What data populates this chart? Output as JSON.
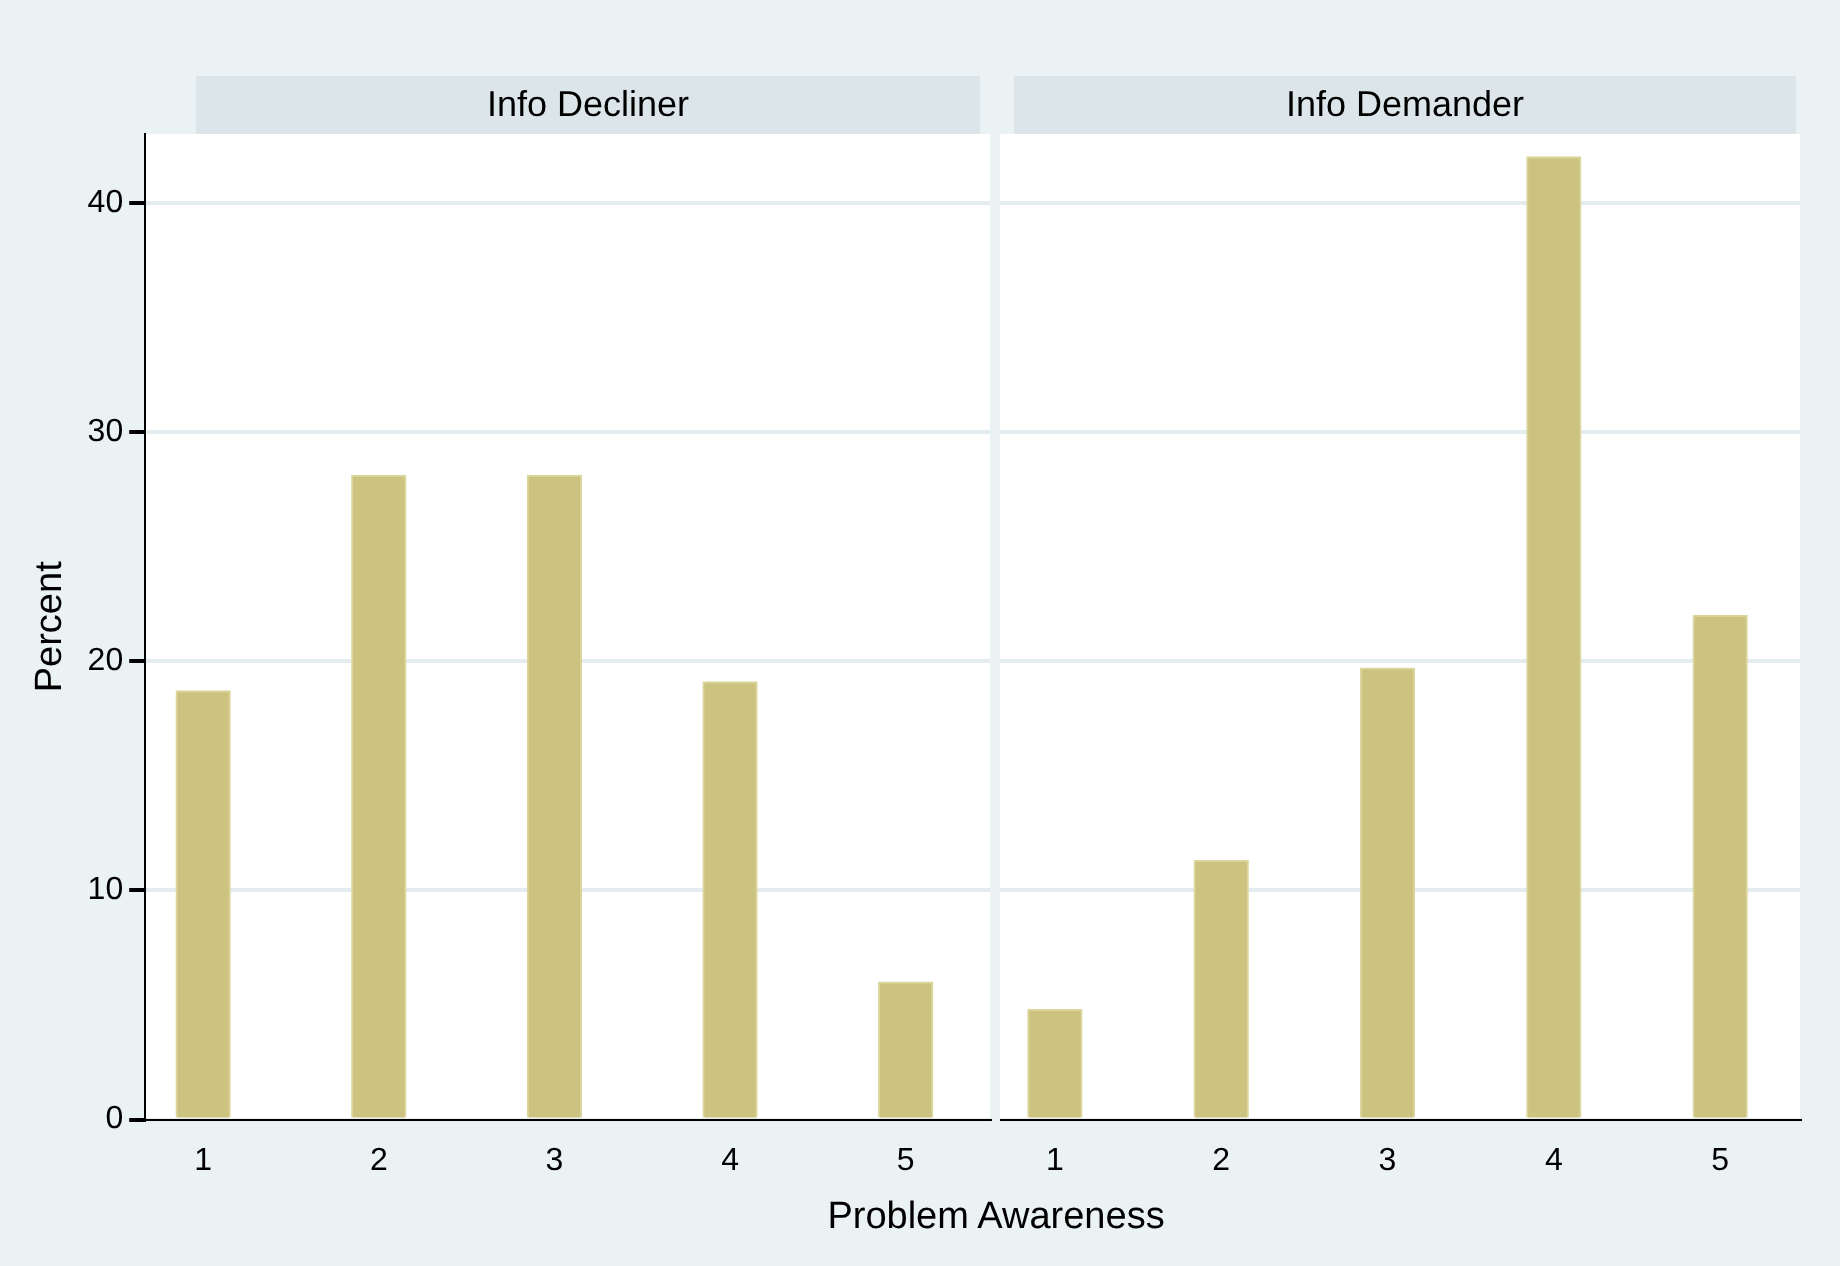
{
  "chart_data": [
    {
      "type": "bar",
      "title": "Info Decliner",
      "ylabel": "Percent",
      "xlabel": "Problem Awareness",
      "x": [
        1,
        2,
        3,
        4,
        5
      ],
      "values": [
        18.7,
        28.1,
        28.1,
        19.1,
        6.0
      ],
      "color": "#ccc381",
      "xlim": [
        0.67,
        5.48
      ],
      "xticks": [
        1,
        2,
        3,
        4,
        5
      ],
      "ylim": [
        0,
        43
      ],
      "yticks": [
        0,
        10,
        20,
        30,
        40
      ],
      "grid": "y"
    },
    {
      "type": "bar",
      "title": "Info Demander",
      "x": [
        1,
        2,
        3,
        4,
        5
      ],
      "values": [
        4.8,
        11.3,
        19.7,
        42.0,
        22.0
      ],
      "color": "#ccc381",
      "xlim": [
        0.67,
        5.48
      ],
      "xticks": [
        1,
        2,
        3,
        4,
        5
      ],
      "ylim": [
        0,
        43
      ],
      "yticks": [
        0,
        10,
        20,
        30,
        40
      ],
      "grid": "y",
      "tick_labels": "x"
    }
  ]
}
